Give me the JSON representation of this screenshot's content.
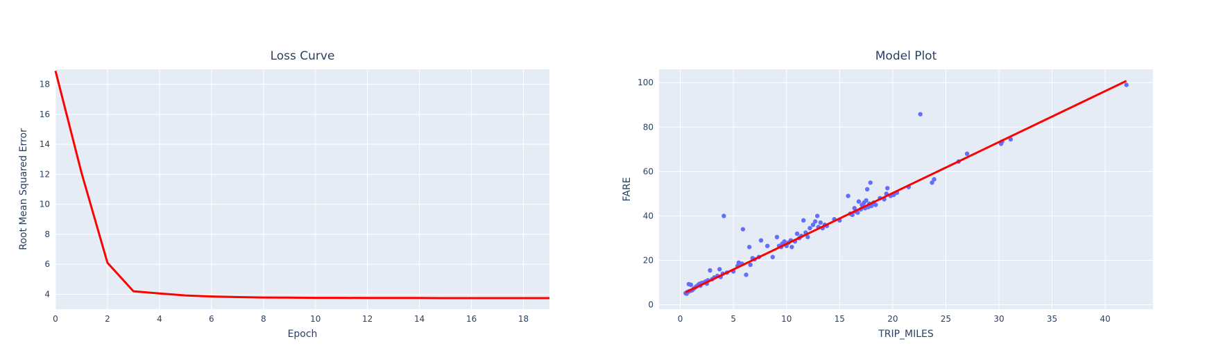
{
  "colors": {
    "plot_bg": "#e5ecf6",
    "grid": "#ffffff",
    "text": "#2a3f5f",
    "line": "#ff0000",
    "marker": "#636efa"
  },
  "chart_data": [
    {
      "type": "line",
      "title": "Loss Curve",
      "xlabel": "Epoch",
      "ylabel": "Root Mean Squared Error",
      "xlim": [
        0,
        19
      ],
      "ylim": [
        3,
        19
      ],
      "xticks": [
        0,
        2,
        4,
        6,
        8,
        10,
        12,
        14,
        16,
        18
      ],
      "yticks": [
        4,
        6,
        8,
        10,
        12,
        14,
        16,
        18
      ],
      "grid": true,
      "series": [
        {
          "x": [
            0,
            1,
            2,
            3,
            4,
            5,
            6,
            7,
            8,
            9,
            10,
            11,
            12,
            13,
            14,
            15,
            16,
            17,
            18,
            19
          ],
          "values": [
            18.9,
            12.1,
            6.1,
            4.2,
            4.05,
            3.92,
            3.85,
            3.81,
            3.78,
            3.77,
            3.76,
            3.76,
            3.75,
            3.75,
            3.75,
            3.74,
            3.74,
            3.74,
            3.74,
            3.74
          ]
        }
      ]
    },
    {
      "type": "scatter",
      "title": "Model Plot",
      "xlabel": "TRIP_MILES",
      "ylabel": "FARE",
      "xlim": [
        -2,
        44.5
      ],
      "ylim": [
        -2,
        106
      ],
      "xticks": [
        0,
        5,
        10,
        15,
        20,
        25,
        30,
        35,
        40
      ],
      "yticks": [
        0,
        20,
        40,
        60,
        80,
        100
      ],
      "grid": true,
      "series": [
        {
          "points": [
            [
              0.5,
              5.2
            ],
            [
              0.6,
              5.5
            ],
            [
              0.7,
              5.8
            ],
            [
              0.8,
              6.0
            ],
            [
              0.9,
              6.2
            ],
            [
              0.6,
              5.0
            ],
            [
              0.8,
              9.3
            ],
            [
              1.0,
              9.0
            ],
            [
              1.1,
              6.5
            ],
            [
              1.2,
              7.0
            ],
            [
              1.3,
              7.4
            ],
            [
              1.4,
              7.8
            ],
            [
              1.5,
              8.2
            ],
            [
              1.6,
              8.5
            ],
            [
              1.7,
              9.0
            ],
            [
              1.8,
              9.4
            ],
            [
              1.9,
              8.6
            ],
            [
              2.0,
              9.8
            ],
            [
              2.2,
              10.0
            ],
            [
              2.4,
              10.5
            ],
            [
              2.5,
              9.5
            ],
            [
              2.6,
              11.0
            ],
            [
              2.8,
              15.5
            ],
            [
              3.0,
              11.5
            ],
            [
              3.2,
              12.3
            ],
            [
              3.5,
              13.0
            ],
            [
              3.7,
              16.0
            ],
            [
              3.8,
              12.5
            ],
            [
              4.0,
              14.0
            ],
            [
              4.1,
              40.0
            ],
            [
              4.4,
              14.5
            ],
            [
              5.0,
              15.0
            ],
            [
              5.4,
              17.5
            ],
            [
              5.5,
              19.0
            ],
            [
              5.8,
              18.5
            ],
            [
              5.9,
              34.0
            ],
            [
              6.2,
              13.5
            ],
            [
              6.5,
              26.0
            ],
            [
              6.6,
              18.0
            ],
            [
              6.8,
              21.0
            ],
            [
              7.0,
              20.5
            ],
            [
              7.4,
              21.5
            ],
            [
              7.6,
              29.0
            ],
            [
              8.2,
              26.5
            ],
            [
              8.7,
              21.5
            ],
            [
              9.1,
              30.5
            ],
            [
              9.3,
              26.5
            ],
            [
              9.5,
              26.0
            ],
            [
              9.6,
              27.5
            ],
            [
              9.8,
              28.5
            ],
            [
              10.0,
              26.5
            ],
            [
              10.2,
              28.0
            ],
            [
              10.4,
              29.0
            ],
            [
              10.5,
              26.0
            ],
            [
              10.8,
              28.5
            ],
            [
              11.0,
              32.0
            ],
            [
              11.2,
              30.0
            ],
            [
              11.4,
              31.0
            ],
            [
              11.6,
              38.0
            ],
            [
              11.8,
              32.5
            ],
            [
              12.0,
              30.5
            ],
            [
              12.2,
              34.5
            ],
            [
              12.5,
              36.0
            ],
            [
              12.7,
              37.5
            ],
            [
              12.9,
              40.0
            ],
            [
              13.0,
              35.0
            ],
            [
              13.2,
              37.0
            ],
            [
              13.4,
              34.5
            ],
            [
              13.6,
              36.0
            ],
            [
              13.8,
              35.5
            ],
            [
              14.5,
              38.5
            ],
            [
              15.0,
              38.0
            ],
            [
              15.8,
              49.0
            ],
            [
              16.0,
              41.0
            ],
            [
              16.2,
              40.5
            ],
            [
              16.4,
              43.5
            ],
            [
              16.5,
              42.0
            ],
            [
              16.7,
              41.5
            ],
            [
              16.8,
              46.5
            ],
            [
              17.0,
              43.0
            ],
            [
              17.1,
              45.0
            ],
            [
              17.2,
              44.5
            ],
            [
              17.3,
              46.0
            ],
            [
              17.4,
              43.5
            ],
            [
              17.5,
              47.0
            ],
            [
              17.6,
              52.0
            ],
            [
              17.7,
              44.0
            ],
            [
              17.8,
              45.5
            ],
            [
              17.9,
              55.0
            ],
            [
              18.0,
              44.5
            ],
            [
              18.2,
              46.0
            ],
            [
              18.4,
              45.0
            ],
            [
              18.8,
              48.0
            ],
            [
              19.2,
              47.5
            ],
            [
              19.4,
              50.0
            ],
            [
              19.5,
              52.5
            ],
            [
              19.8,
              49.0
            ],
            [
              20.1,
              49.5
            ],
            [
              20.4,
              50.5
            ],
            [
              21.5,
              53.0
            ],
            [
              22.6,
              85.8
            ],
            [
              23.7,
              55.0
            ],
            [
              23.9,
              56.5
            ],
            [
              26.2,
              64.5
            ],
            [
              27.0,
              68.0
            ],
            [
              30.2,
              72.5
            ],
            [
              30.3,
              73.5
            ],
            [
              31.1,
              74.5
            ],
            [
              42.0,
              99.0
            ]
          ]
        },
        {
          "x": [
            0.5,
            42.0
          ],
          "values": [
            5.6,
            100.8
          ]
        }
      ]
    }
  ]
}
